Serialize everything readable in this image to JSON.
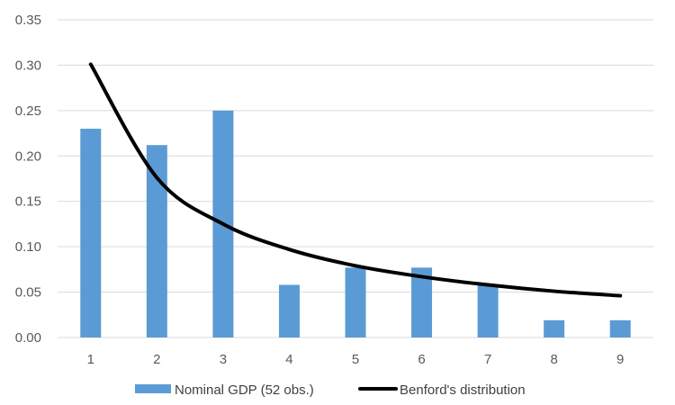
{
  "chart_data": {
    "type": "bar",
    "categories": [
      "1",
      "2",
      "3",
      "4",
      "5",
      "6",
      "7",
      "8",
      "9"
    ],
    "series": [
      {
        "name": "Nominal GDP (52 obs.)",
        "type": "bar",
        "values": [
          0.23,
          0.212,
          0.25,
          0.058,
          0.077,
          0.077,
          0.058,
          0.019,
          0.019
        ]
      },
      {
        "name": "Benford's distribution",
        "type": "line",
        "values": [
          0.301,
          0.176,
          0.125,
          0.097,
          0.079,
          0.067,
          0.058,
          0.051,
          0.046
        ]
      }
    ],
    "y_ticks": [
      "0.00",
      "0.05",
      "0.10",
      "0.15",
      "0.20",
      "0.25",
      "0.30",
      "0.35"
    ],
    "ylim": [
      0,
      0.35
    ],
    "grid": true,
    "legend_position": "bottom",
    "colors": {
      "bar": "#5b9bd5",
      "line": "#000000",
      "grid": "#d9d9d9"
    }
  }
}
